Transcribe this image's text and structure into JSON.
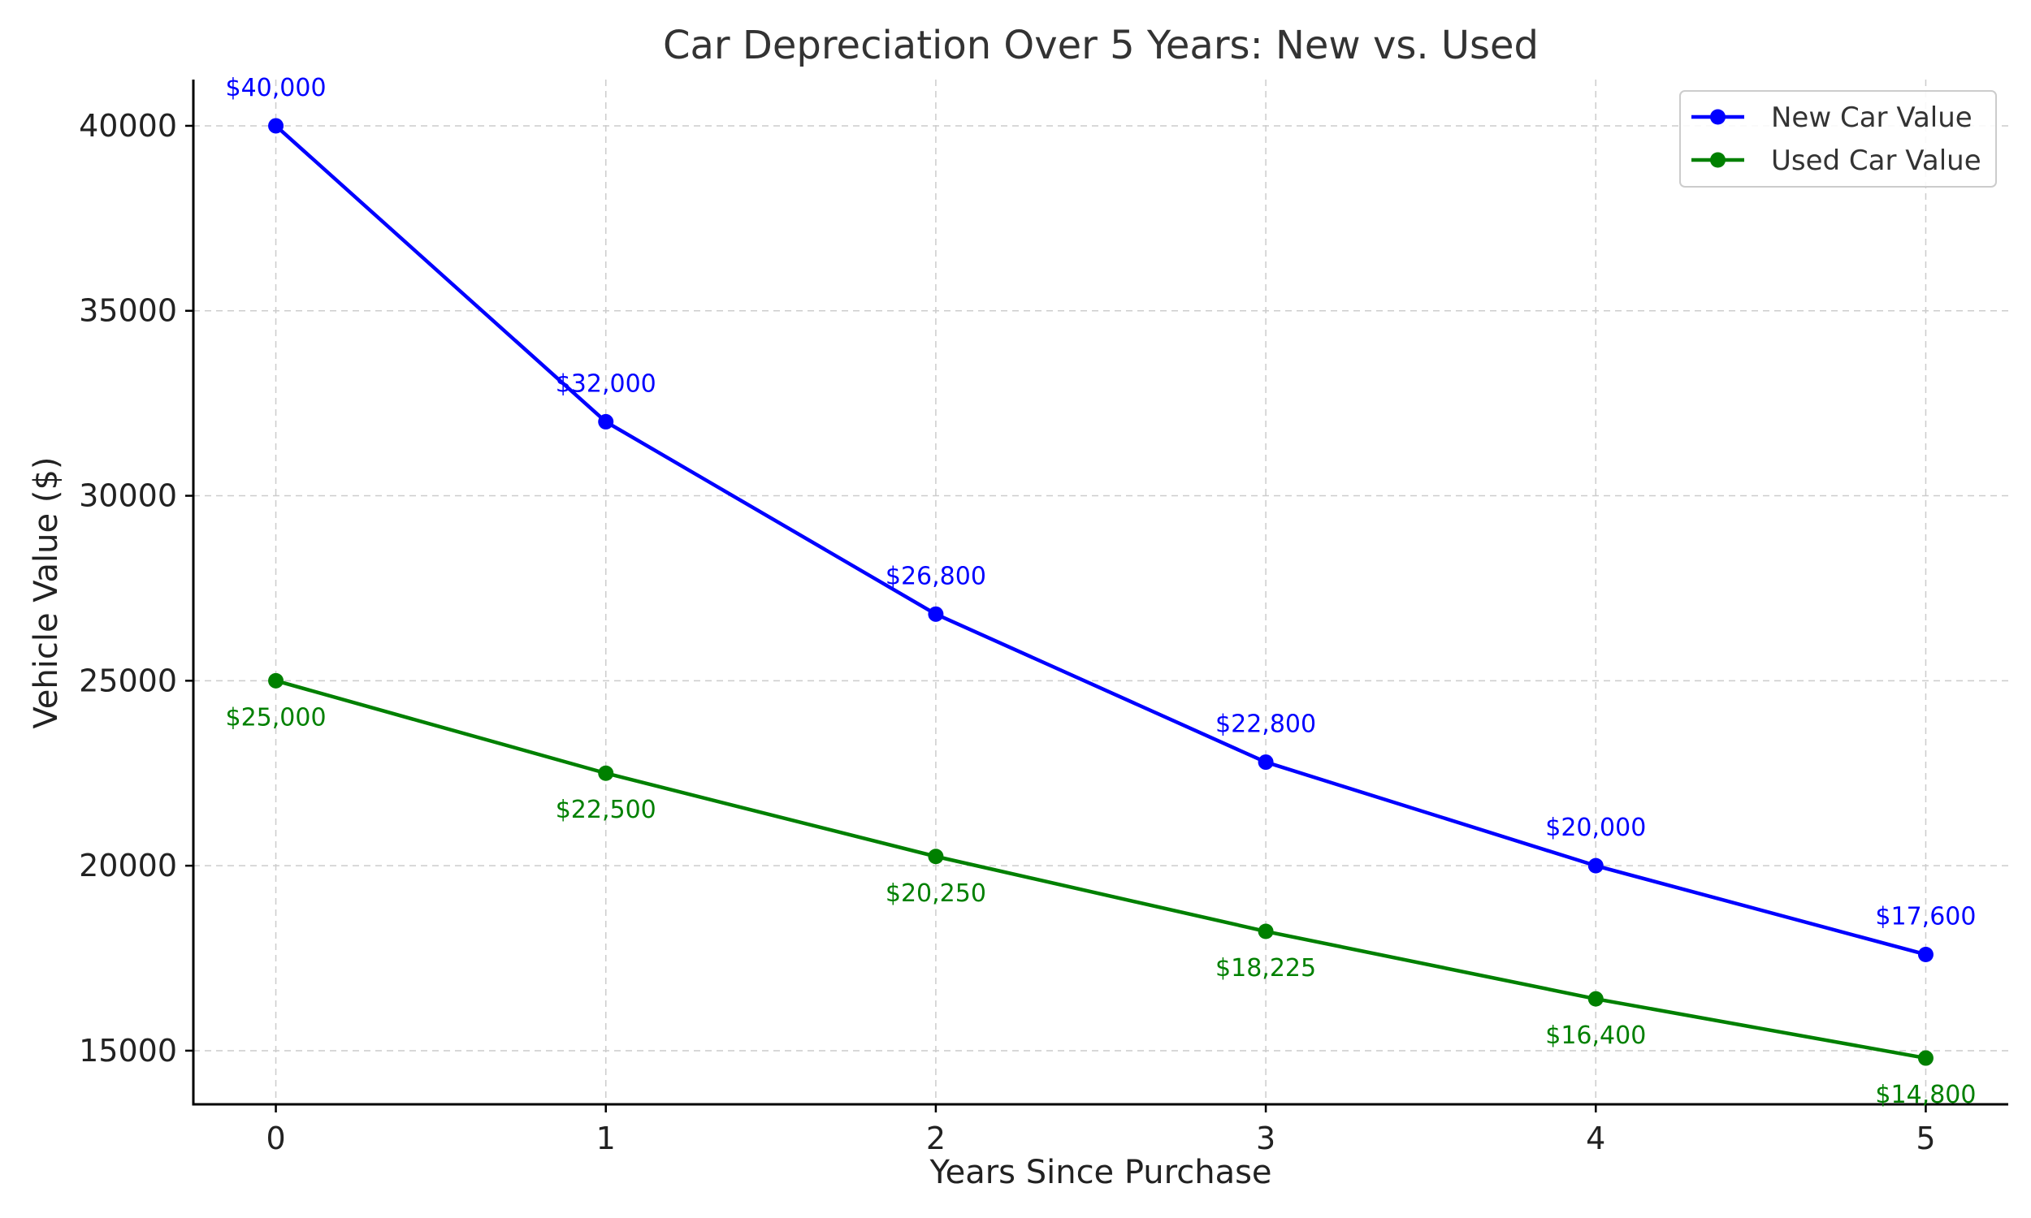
{
  "chart_data": {
    "type": "line",
    "title": "Car Depreciation Over 5 Years: New vs. Used",
    "xlabel": "Years Since Purchase",
    "ylabel": "Vehicle Value ($)",
    "x": [
      0,
      1,
      2,
      3,
      4,
      5
    ],
    "x_tick_labels": [
      "0",
      "1",
      "2",
      "3",
      "4",
      "5"
    ],
    "y_ticks": [
      15000,
      20000,
      25000,
      30000,
      35000,
      40000
    ],
    "y_tick_labels": [
      "15000",
      "20000",
      "25000",
      "30000",
      "35000",
      "40000"
    ],
    "xlim": [
      -0.25,
      5.25
    ],
    "ylim": [
      13550,
      41250
    ],
    "grid": true,
    "legend_position": "top-right",
    "series": [
      {
        "name": "New Car Value",
        "color": "#0000ff",
        "marker": "circle",
        "label_position": "above",
        "values": [
          40000,
          32000,
          26800,
          22800,
          20000,
          17600
        ],
        "labels": [
          "$40,000",
          "$32,000",
          "$26,800",
          "$22,800",
          "$20,000",
          "$17,600"
        ]
      },
      {
        "name": "Used Car Value",
        "color": "#008000",
        "marker": "circle",
        "label_position": "below",
        "values": [
          25000,
          22500,
          20250,
          18225,
          16400,
          14800
        ],
        "labels": [
          "$25,000",
          "$22,500",
          "$20,250",
          "$18,225",
          "$16,400",
          "$14,800"
        ]
      }
    ]
  }
}
